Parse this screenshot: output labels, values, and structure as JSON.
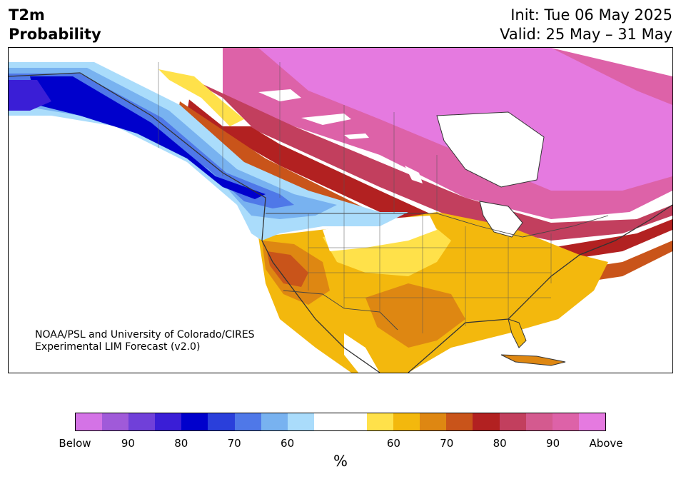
{
  "title": {
    "line1": "T2m",
    "line2": "Probability"
  },
  "init": "Init: Tue 06 May 2025",
  "valid": "Valid: 25 May – 31 May",
  "credit": {
    "line1": "NOAA/PSL and University of Colorado/CIRES",
    "line2": "Experimental LIM Forecast (v2.0)"
  },
  "colorbar": {
    "colors": [
      "#d473e6",
      "#a05ad9",
      "#7040d9",
      "#3a1ed6",
      "#0000cc",
      "#2a3fdb",
      "#4f78e8",
      "#78b2f0",
      "#aadcfb",
      "#ffffff",
      "#ffffff",
      "#ffe14a",
      "#f3b80d",
      "#de8712",
      "#c9541a",
      "#b22121",
      "#c23f5e",
      "#d45a8f",
      "#dd62a8",
      "#e57ae0"
    ],
    "labels": [
      "Below",
      "90",
      "80",
      "70",
      "60",
      "60",
      "70",
      "80",
      "90",
      "Above"
    ],
    "unit": "%"
  },
  "palette": {
    "below_deep": "#0000cc",
    "below_mid": "#3a1ed6",
    "below_light": "#78b2f0",
    "below_pale": "#aadcfb",
    "neutral": "#ffffff",
    "above_yellow": "#ffe14a",
    "above_gold": "#f3b80d",
    "above_orange": "#de8712",
    "above_dark": "#c9541a",
    "above_red": "#b22121",
    "above_rose": "#c23f5e",
    "above_pink": "#dd62a8",
    "above_max": "#e57ae0"
  }
}
